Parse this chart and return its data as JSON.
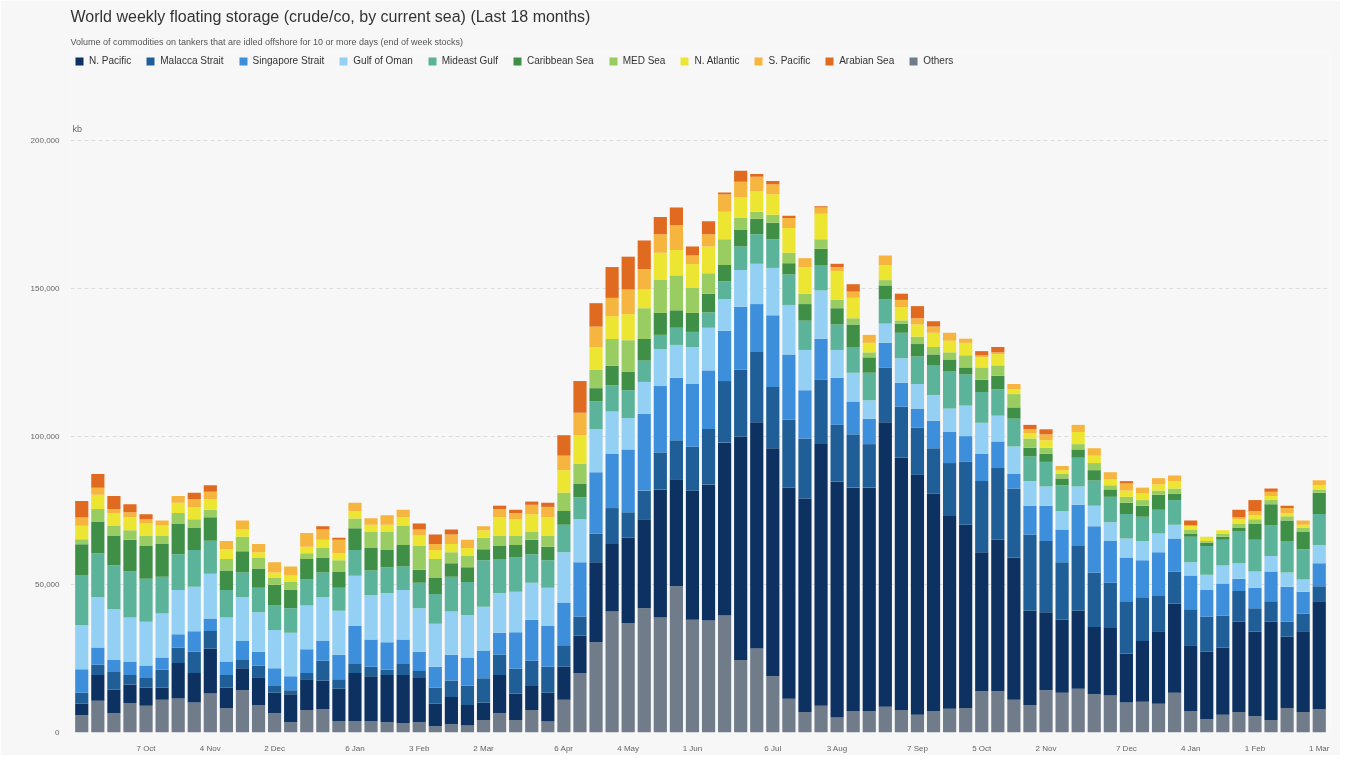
{
  "chart_data": {
    "type": "bar",
    "stacked": true,
    "title": "World weekly floating storage (crude/co, by current sea)  (Last 18 months)",
    "subtitle": "Volume of commodities on tankers that are idled offshore for 10 or more days (end of week stocks)",
    "ylabel": "kb",
    "categories": [
      null,
      null,
      null,
      null,
      "7 Oct",
      null,
      null,
      null,
      "4 Nov",
      null,
      null,
      null,
      "2 Dec",
      null,
      null,
      null,
      null,
      "6 Jan",
      null,
      null,
      null,
      "3 Feb",
      null,
      null,
      null,
      "2 Mar",
      null,
      null,
      null,
      null,
      "6 Apr",
      null,
      null,
      null,
      "4 May",
      null,
      null,
      null,
      "1 Jun",
      null,
      null,
      null,
      null,
      "6 Jul",
      null,
      null,
      null,
      "3 Aug",
      null,
      null,
      null,
      null,
      "7 Sep",
      null,
      null,
      null,
      "5 Oct",
      null,
      null,
      null,
      "2 Nov",
      null,
      null,
      null,
      null,
      "7 Dec",
      null,
      null,
      null,
      "4 Jan",
      null,
      null,
      null,
      "1 Feb",
      null,
      null,
      null,
      "1 Mar"
    ],
    "ylim": [
      0,
      230000
    ],
    "yticks": [
      0,
      {
        "value": 50000,
        "label": "50,000"
      },
      {
        "value": 100000,
        "label": "100,000"
      },
      {
        "value": 150000,
        "label": "150,000"
      },
      {
        "value": 200000,
        "label": "200,000"
      }
    ],
    "grid": "y",
    "legend": "top",
    "series": [
      {
        "name": "Others",
        "color": "#717c8a",
        "values": [
          5800,
          10700,
          6500,
          10000,
          9000,
          11100,
          11500,
          10100,
          13200,
          8300,
          14300,
          9300,
          6500,
          3500,
          7600,
          7900,
          3900,
          3900,
          3900,
          3500,
          3200,
          3500,
          2100,
          2800,
          2400,
          4200,
          6500,
          4200,
          7600,
          3700,
          11100,
          20100,
          30500,
          40900,
          37000,
          42000,
          38800,
          49400,
          38100,
          37800,
          39500,
          24500,
          28400,
          19000,
          11400,
          6900,
          9000,
          5100,
          7300,
          7300,
          8700,
          7600,
          6000,
          7300,
          8000,
          8300,
          13900,
          13900,
          11100,
          9300,
          14300,
          13400,
          14800,
          12900,
          12500,
          10100,
          10400,
          9700,
          13400,
          7300,
          4600,
          6000,
          6900,
          5500,
          4200,
          8300,
          6900,
          7900
        ]
      },
      {
        "name": "N. Pacific",
        "color": "#0d3160",
        "values": [
          3900,
          8700,
          8000,
          6200,
          6200,
          4100,
          12000,
          10000,
          15200,
          6900,
          7400,
          9400,
          6900,
          9400,
          10400,
          9700,
          10900,
          16200,
          15100,
          15900,
          16200,
          14900,
          7600,
          9200,
          6900,
          5900,
          12900,
          9000,
          8100,
          9700,
          11100,
          12700,
          27000,
          22800,
          28800,
          30000,
          43300,
          36100,
          43600,
          46000,
          58400,
          75500,
          76400,
          77000,
          71300,
          72100,
          88400,
          79700,
          75400,
          75400,
          96100,
          85200,
          81000,
          73400,
          65100,
          61900,
          47000,
          51200,
          48000,
          31800,
          26300,
          24700,
          26300,
          22700,
          22800,
          16600,
          20500,
          24500,
          30200,
          22200,
          22700,
          22700,
          30500,
          28500,
          33200,
          24000,
          27300,
          36400
        ]
      },
      {
        "name": "Malacca Strait",
        "color": "#1f5e96",
        "values": [
          3700,
          3500,
          5900,
          3200,
          3200,
          6000,
          5200,
          7200,
          5900,
          4200,
          2800,
          3900,
          2300,
          1400,
          2100,
          6600,
          3200,
          3000,
          3200,
          1800,
          3700,
          2400,
          5500,
          5600,
          6600,
          8200,
          6900,
          8300,
          8500,
          8800,
          7300,
          6400,
          9700,
          12100,
          8600,
          9700,
          12500,
          13200,
          14800,
          18700,
          20800,
          22600,
          23700,
          20700,
          23000,
          20300,
          21700,
          19100,
          18000,
          14700,
          18500,
          17300,
          15900,
          15300,
          17900,
          21200,
          24000,
          24200,
          23300,
          25800,
          24100,
          19400,
          21900,
          18400,
          15300,
          17600,
          14800,
          11900,
          10800,
          12100,
          11900,
          10800,
          10400,
          8000,
          6900,
          5100,
          6000,
          5100
        ]
      },
      {
        "name": "Singapore Strait",
        "color": "#3d8fdc",
        "values": [
          8000,
          5800,
          4100,
          4600,
          4200,
          4100,
          4500,
          6900,
          4200,
          4600,
          6400,
          4700,
          6000,
          4700,
          8000,
          6700,
          8300,
          12900,
          9200,
          9300,
          8300,
          6500,
          7000,
          8700,
          9400,
          9400,
          7400,
          12400,
          13900,
          13800,
          14400,
          18300,
          20700,
          18400,
          21200,
          25900,
          22400,
          21100,
          21200,
          19800,
          17000,
          21200,
          16200,
          24200,
          22000,
          16300,
          13900,
          15900,
          11100,
          8600,
          8300,
          8000,
          6500,
          9300,
          10500,
          8700,
          9300,
          9000,
          4900,
          9700,
          11900,
          11100,
          13900,
          15700,
          14100,
          14800,
          12500,
          14800,
          11100,
          11400,
          8900,
          10800,
          4100,
          6900,
          10100,
          11800,
          7300,
          7800
        ]
      },
      {
        "name": "Gulf of Oman",
        "color": "#93d0f3",
        "values": [
          14800,
          17000,
          17100,
          14800,
          14800,
          14900,
          14900,
          15000,
          15100,
          14800,
          14800,
          13300,
          12900,
          14700,
          14800,
          14800,
          14800,
          16900,
          15000,
          16600,
          16700,
          14700,
          14500,
          14600,
          14400,
          14800,
          13400,
          13600,
          12500,
          12900,
          17000,
          14500,
          14600,
          14200,
          10600,
          10800,
          12500,
          11100,
          12500,
          14400,
          10700,
          12400,
          13600,
          16000,
          16700,
          13600,
          16300,
          9400,
          9700,
          6200,
          6500,
          8300,
          8300,
          8700,
          7900,
          10300,
          10400,
          8700,
          9300,
          8300,
          6500,
          6200,
          6200,
          6900,
          6300,
          6400,
          6500,
          6300,
          4700,
          4500,
          5200,
          6100,
          5300,
          5500,
          5200,
          4800,
          4200,
          6100
        ]
      },
      {
        "name": "Mideast Gulf",
        "color": "#5bb39a",
        "values": [
          17000,
          14800,
          14900,
          15600,
          14500,
          12400,
          12100,
          12400,
          11200,
          9300,
          8300,
          8300,
          8300,
          8300,
          8800,
          8300,
          7800,
          8700,
          8300,
          8700,
          8000,
          8600,
          10100,
          11700,
          11100,
          15700,
          11500,
          11600,
          9600,
          9300,
          9300,
          7400,
          9300,
          8900,
          9400,
          7200,
          4800,
          5800,
          5100,
          5200,
          6000,
          7900,
          10000,
          9700,
          10300,
          9900,
          8600,
          8600,
          8700,
          9300,
          8300,
          8600,
          9300,
          9900,
          12500,
          10500,
          10400,
          8900,
          9400,
          8300,
          8300,
          8700,
          9700,
          8500,
          8600,
          8300,
          8200,
          8000,
          8300,
          8600,
          9700,
          8700,
          10700,
          10700,
          10300,
          10700,
          10200,
          10500
        ]
      },
      {
        "name": "Caribbean Sea",
        "color": "#3f8f47",
        "values": [
          10400,
          10800,
          10000,
          10700,
          11100,
          11100,
          10400,
          7600,
          7900,
          6600,
          7200,
          6500,
          7000,
          6100,
          6900,
          5100,
          5500,
          7400,
          7600,
          5800,
          7200,
          4400,
          5400,
          4600,
          5000,
          3700,
          4400,
          4200,
          4900,
          4500,
          4600,
          4700,
          4500,
          6600,
          6300,
          7300,
          7400,
          5900,
          6400,
          6300,
          5500,
          5600,
          5200,
          5600,
          3800,
          5600,
          5500,
          5500,
          7600,
          5200,
          4600,
          3100,
          4200,
          3800,
          4100,
          2400,
          4100,
          4600,
          3800,
          3000,
          2800,
          2300,
          2800,
          3500,
          2500,
          3800,
          3700,
          5100,
          2200,
          1100,
          1100,
          1000,
          1300,
          5500,
          7200,
          6900,
          6000,
          7200
        ]
      },
      {
        "name": "MED Sea",
        "color": "#9acd61",
        "values": [
          1700,
          4200,
          3400,
          3200,
          3500,
          2800,
          3500,
          2800,
          2500,
          3900,
          4900,
          3500,
          2300,
          2700,
          1900,
          3200,
          3800,
          3300,
          5600,
          6300,
          6600,
          8000,
          6400,
          3700,
          3800,
          3900,
          3500,
          3200,
          2800,
          3800,
          6200,
          6600,
          6300,
          9000,
          10600,
          10400,
          11300,
          11800,
          8600,
          6900,
          8700,
          4100,
          2400,
          2700,
          3500,
          3500,
          3200,
          2800,
          2100,
          1700,
          1800,
          1100,
          2500,
          2500,
          2400,
          4100,
          4200,
          3500,
          4500,
          3100,
          2000,
          1500,
          1800,
          2400,
          1400,
          2000,
          1900,
          1400,
          1700,
          1400,
          600,
          1100,
          1400,
          1400,
          1400,
          1400,
          1300,
          1100
        ]
      },
      {
        "name": "N. Atlantic",
        "color": "#ece632",
        "values": [
          4500,
          4800,
          4200,
          4400,
          4100,
          3400,
          3500,
          4200,
          3700,
          3300,
          2500,
          2000,
          1800,
          2200,
          2200,
          2800,
          2300,
          2500,
          2300,
          2300,
          2800,
          3500,
          3000,
          2800,
          2700,
          2500,
          6200,
          5500,
          5800,
          6200,
          7600,
          9700,
          7600,
          7700,
          8800,
          6300,
          9000,
          8600,
          7900,
          9000,
          9300,
          6900,
          6900,
          6900,
          8400,
          9000,
          8600,
          9700,
          6900,
          3200,
          5100,
          4400,
          4100,
          4800,
          3900,
          4200,
          3400,
          3800,
          1600,
          1800,
          2500,
          1300,
          4100,
          2500,
          2000,
          2100,
          2200,
          2100,
          2500,
          1300,
          1400,
          1100,
          1400,
          1400,
          1400,
          1100,
          1000,
          1400
        ]
      },
      {
        "name": "S. Pacific",
        "color": "#f6b53f",
        "values": [
          2800,
          2400,
          1400,
          1700,
          1400,
          1700,
          2300,
          2700,
          2400,
          2800,
          3000,
          2800,
          3500,
          3100,
          4700,
          3500,
          4600,
          2800,
          2200,
          3200,
          2500,
          2100,
          2100,
          3200,
          2800,
          1400,
          2800,
          2100,
          3200,
          3500,
          4900,
          7600,
          6900,
          6200,
          8300,
          6900,
          6300,
          8300,
          2900,
          4200,
          5900,
          5300,
          4900,
          3400,
          3400,
          3000,
          2100,
          1400,
          2100,
          2700,
          3200,
          2500,
          2100,
          2100,
          2700,
          1400,
          700,
          600,
          1800,
          1400,
          2000,
          1400,
          2400,
          2500,
          2400,
          2400,
          2000,
          2100,
          1900,
          0,
          0,
          0,
          700,
          1400,
          1400,
          1700,
          1400,
          1700
        ]
      },
      {
        "name": "Arabian Sea",
        "color": "#e06a20",
        "values": [
          5600,
          4600,
          4400,
          2700,
          1700,
          0,
          0,
          2100,
          2200,
          0,
          0,
          0,
          0,
          0,
          0,
          1100,
          700,
          0,
          0,
          0,
          0,
          2000,
          3200,
          1700,
          0,
          0,
          1100,
          1100,
          1100,
          1400,
          6900,
          10700,
          7900,
          10400,
          11100,
          9700,
          5800,
          6000,
          3000,
          4400,
          600,
          3700,
          900,
          1100,
          700,
          0,
          400,
          1100,
          2500,
          0,
          0,
          2100,
          4100,
          1800,
          0,
          0,
          1400,
          1800,
          0,
          1400,
          1700,
          0,
          0,
          0,
          0,
          800,
          0,
          0,
          0,
          1700,
          0,
          0,
          2500,
          3700,
          1100,
          800,
          0,
          0
        ]
      }
    ]
  }
}
